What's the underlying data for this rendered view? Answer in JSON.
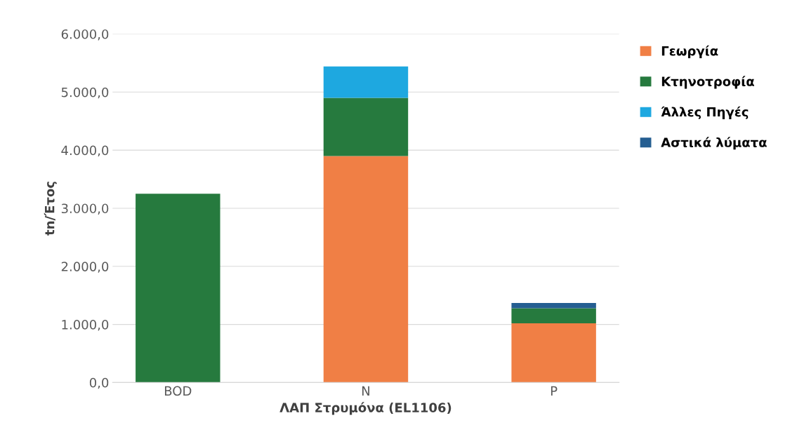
{
  "chart_data": {
    "type": "bar",
    "stacked": true,
    "categories": [
      "BOD",
      "N",
      "P"
    ],
    "series": [
      {
        "name": "Γεωργία",
        "color": "#f07f45",
        "values": [
          0,
          3900,
          1020
        ]
      },
      {
        "name": "Κτηνοτροφία",
        "color": "#267a3e",
        "values": [
          3250,
          1000,
          260
        ]
      },
      {
        "name": "Άλλες Πηγές",
        "color": "#1ea8e0",
        "values": [
          0,
          540,
          0
        ]
      },
      {
        "name": "Αστικά λύματα",
        "color": "#255e91",
        "values": [
          0,
          0,
          90
        ]
      }
    ],
    "xlabel": "ΛΑΠ Στρυμόνα (EL1106)",
    "ylabel": "tn/Έτος",
    "ylim": [
      0,
      6000
    ],
    "yticks": [
      {
        "value": 0,
        "label": "0,0"
      },
      {
        "value": 1000,
        "label": "1.000,0"
      },
      {
        "value": 2000,
        "label": "2.000,0"
      },
      {
        "value": 3000,
        "label": "3.000,0"
      },
      {
        "value": 4000,
        "label": "4.000,0"
      },
      {
        "value": 5000,
        "label": "5.000,0"
      },
      {
        "value": 6000,
        "label": "6.000,0"
      }
    ],
    "grid": "y",
    "legend": "right"
  }
}
